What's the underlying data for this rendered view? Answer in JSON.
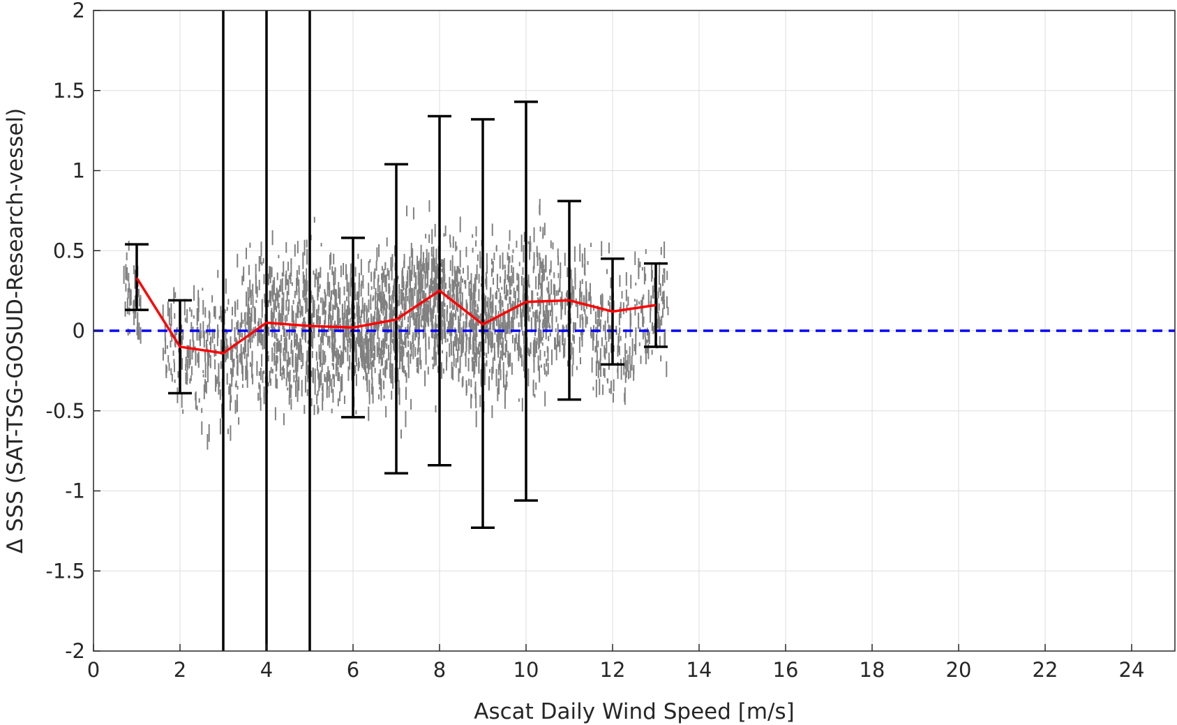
{
  "chart_data": {
    "type": "scatter",
    "xlabel": "Ascat Daily Wind Speed [m/s]",
    "ylabel": "Δ SSS (SAT-TSG-GOSUD-Research-vessel)",
    "xlim": [
      0,
      25
    ],
    "ylim": [
      -2,
      2
    ],
    "xticks": [
      0,
      2,
      4,
      6,
      8,
      10,
      12,
      14,
      16,
      18,
      20,
      22,
      24
    ],
    "yticks": [
      -2,
      -1.5,
      -1,
      -0.5,
      0,
      0.5,
      1,
      1.5,
      2
    ],
    "xtick_labels": [
      "0",
      "2",
      "4",
      "6",
      "8",
      "10",
      "12",
      "14",
      "16",
      "18",
      "20",
      "22",
      "24"
    ],
    "ytick_labels": [
      "-2",
      "-1.5",
      "-1",
      "-0.5",
      "0",
      "0.5",
      "1",
      "1.5",
      "2"
    ],
    "grid": true,
    "reference_line": {
      "y": 0,
      "style": "dashed",
      "color": "#0000ff"
    },
    "scatter_color": "#808080",
    "mean_line_color": "#ff0000",
    "errorbar_color": "#000000",
    "bins": [
      {
        "x": 1,
        "mean": 0.33,
        "lower": 0.13,
        "upper": 0.54
      },
      {
        "x": 2,
        "mean": -0.1,
        "lower": -0.39,
        "upper": 0.19
      },
      {
        "x": 3,
        "mean": -0.14,
        "lower": -2.0,
        "upper": 2.0
      },
      {
        "x": 4,
        "mean": 0.05,
        "lower": -2.0,
        "upper": 2.0
      },
      {
        "x": 5,
        "mean": 0.03,
        "lower": -2.0,
        "upper": 2.0
      },
      {
        "x": 6,
        "mean": 0.02,
        "lower": -0.54,
        "upper": 0.58
      },
      {
        "x": 7,
        "mean": 0.07,
        "lower": -0.89,
        "upper": 1.04
      },
      {
        "x": 8,
        "mean": 0.25,
        "lower": -0.84,
        "upper": 1.34
      },
      {
        "x": 9,
        "mean": 0.04,
        "lower": -1.23,
        "upper": 1.32
      },
      {
        "x": 10,
        "mean": 0.18,
        "lower": -1.06,
        "upper": 1.43
      },
      {
        "x": 11,
        "mean": 0.19,
        "lower": -0.43,
        "upper": 0.81
      },
      {
        "x": 12,
        "mean": 0.12,
        "lower": -0.21,
        "upper": 0.45
      },
      {
        "x": 13,
        "mean": 0.16,
        "lower": -0.1,
        "upper": 0.42
      }
    ],
    "scatter_clusters": [
      {
        "x_min": 0.7,
        "x_max": 1.1,
        "y_center": 0.2,
        "y_spread": 0.22,
        "count": 40
      },
      {
        "x_min": 1.6,
        "x_max": 2.5,
        "y_center": -0.1,
        "y_spread": 0.3,
        "count": 90
      },
      {
        "x_min": 2.5,
        "x_max": 3.5,
        "y_center": -0.12,
        "y_spread": 0.38,
        "count": 150
      },
      {
        "x_min": 3.5,
        "x_max": 4.5,
        "y_center": 0.0,
        "y_spread": 0.4,
        "count": 220
      },
      {
        "x_min": 4.5,
        "x_max": 5.5,
        "y_center": 0.02,
        "y_spread": 0.38,
        "count": 260
      },
      {
        "x_min": 5.5,
        "x_max": 6.5,
        "y_center": 0.0,
        "y_spread": 0.35,
        "count": 280
      },
      {
        "x_min": 6.5,
        "x_max": 7.5,
        "y_center": 0.05,
        "y_spread": 0.38,
        "count": 320
      },
      {
        "x_min": 7.5,
        "x_max": 8.5,
        "y_center": 0.18,
        "y_spread": 0.35,
        "count": 330
      },
      {
        "x_min": 8.5,
        "x_max": 9.5,
        "y_center": 0.05,
        "y_spread": 0.38,
        "count": 300
      },
      {
        "x_min": 9.5,
        "x_max": 10.5,
        "y_center": 0.12,
        "y_spread": 0.4,
        "count": 260
      },
      {
        "x_min": 10.5,
        "x_max": 11.5,
        "y_center": 0.15,
        "y_spread": 0.3,
        "count": 140
      },
      {
        "x_min": 11.5,
        "x_max": 12.5,
        "y_center": -0.05,
        "y_spread": 0.35,
        "count": 120
      },
      {
        "x_min": 12.5,
        "x_max": 13.3,
        "y_center": 0.12,
        "y_spread": 0.3,
        "count": 90
      }
    ]
  }
}
